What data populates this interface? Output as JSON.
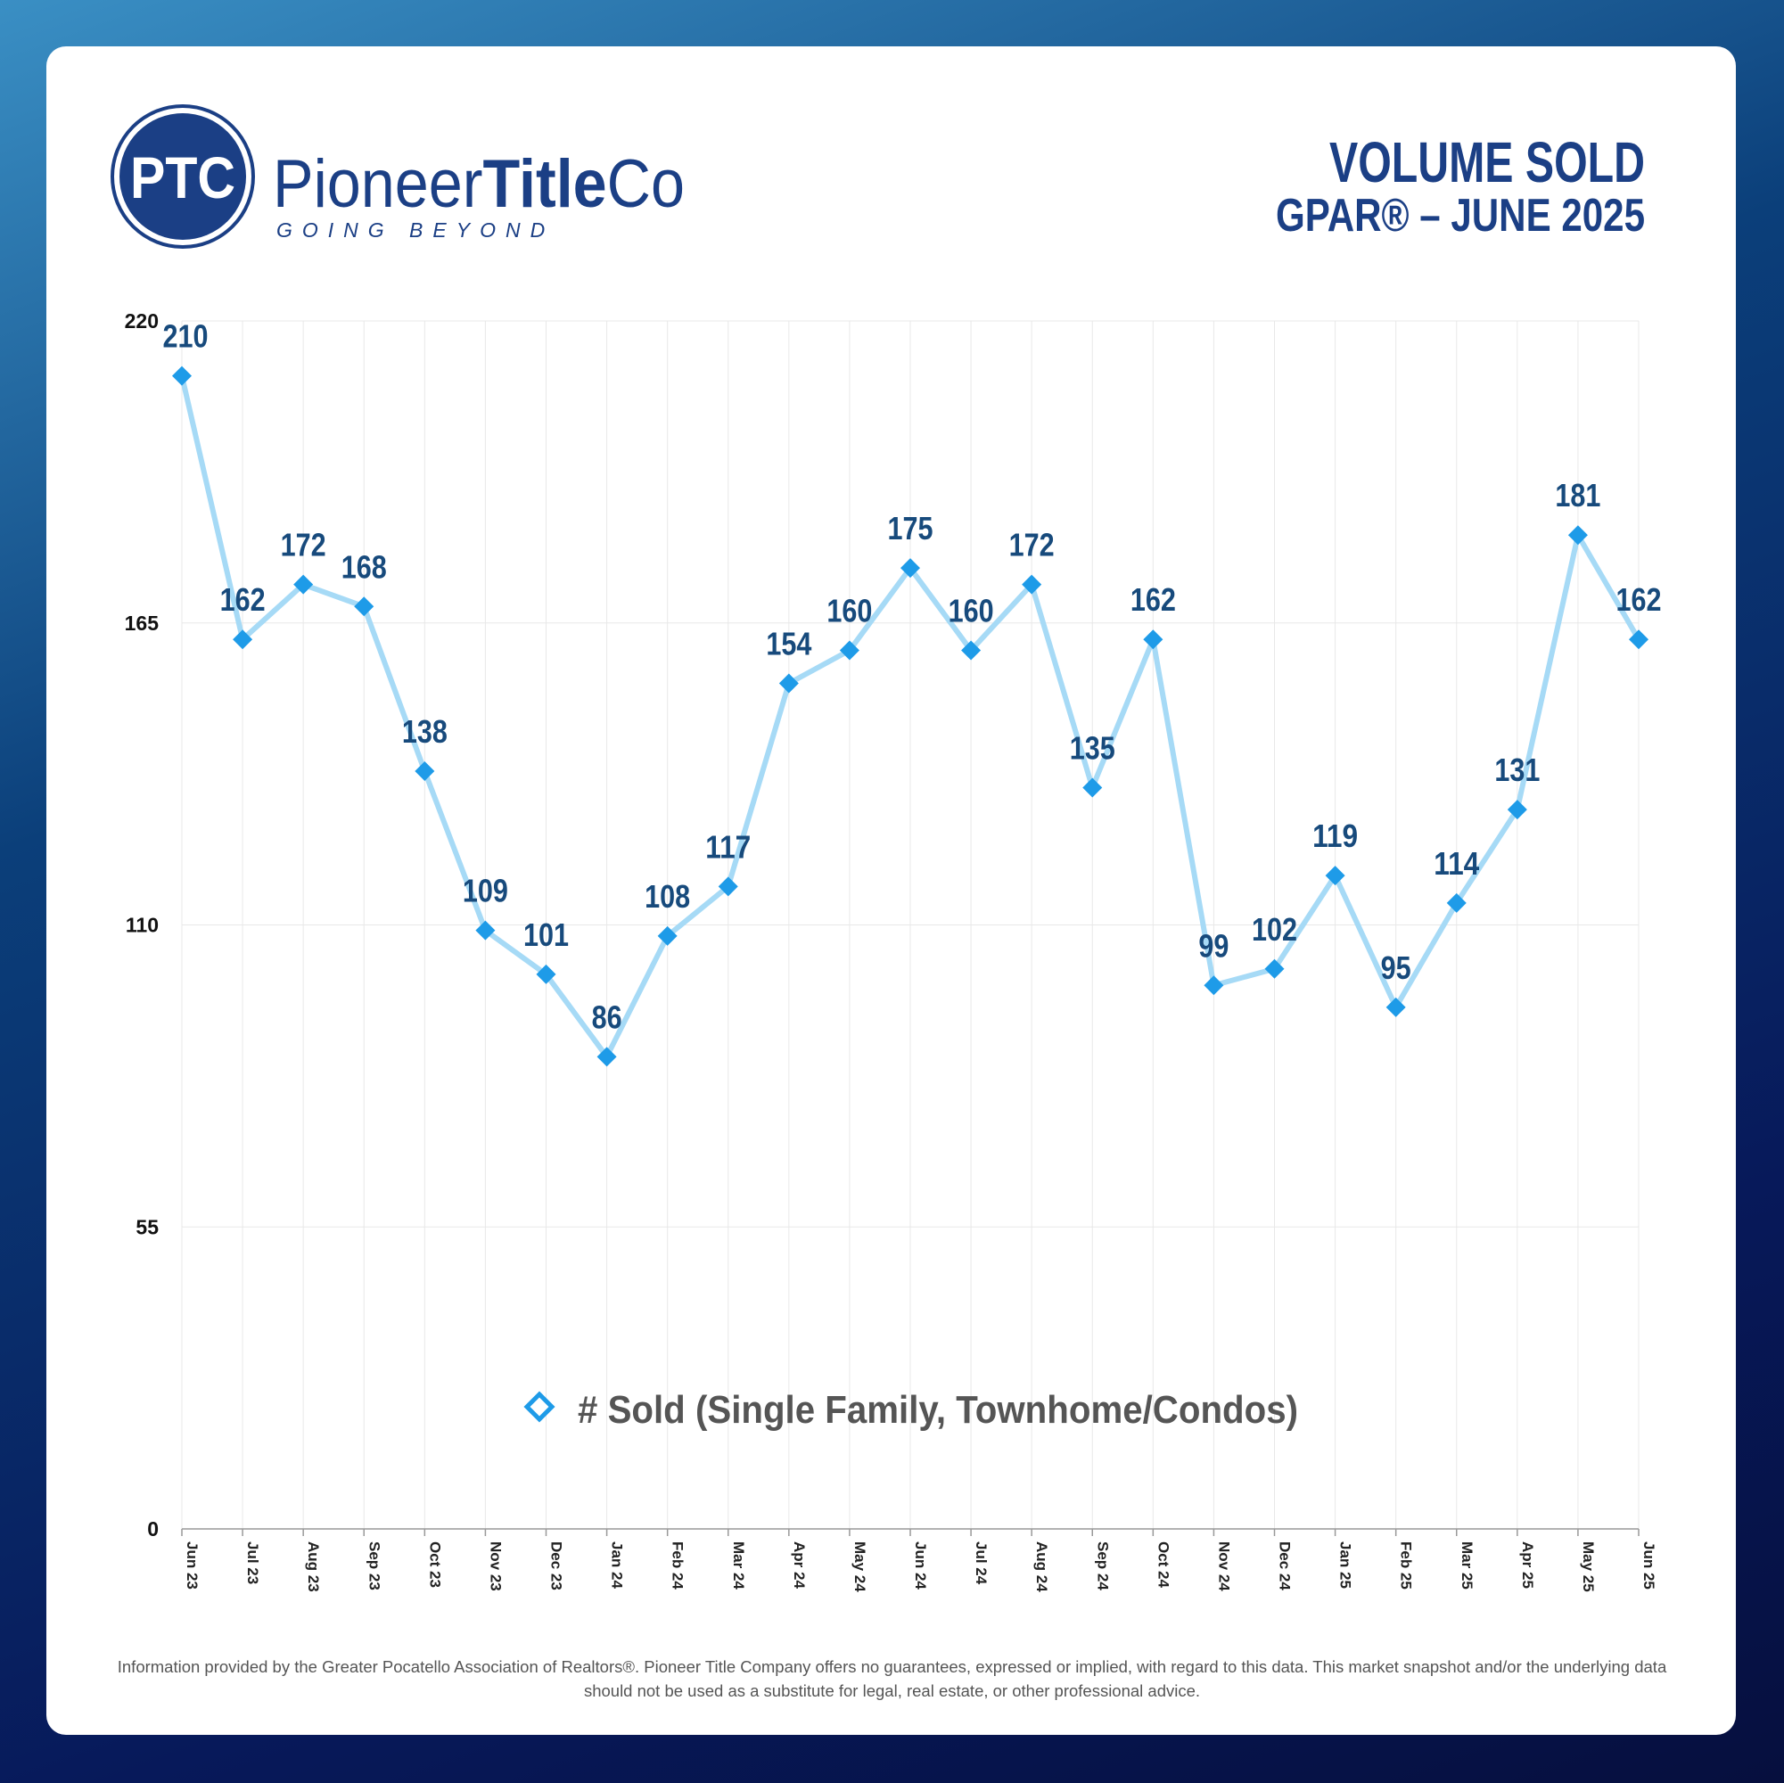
{
  "header": {
    "logo_initials": "PTC",
    "brand_first": "Pioneer",
    "brand_bold": "Title",
    "brand_last": "Co",
    "tagline": "GOING BEYOND"
  },
  "chart_data": {
    "type": "line",
    "title": "VOLUME SOLD",
    "subtitle": "GPAR® – JUNE 2025",
    "categories": [
      "Jun 23",
      "Jul 23",
      "Aug 23",
      "Sep 23",
      "Oct 23",
      "Nov 23",
      "Dec 23",
      "Jan 24",
      "Feb 24",
      "Mar 24",
      "Apr 24",
      "May 24",
      "Jun 24",
      "Jul 24",
      "Aug 24",
      "Sep 24",
      "Oct 24",
      "Nov 24",
      "Dec 24",
      "Jan 25",
      "Feb 25",
      "Mar 25",
      "Apr 25",
      "May 25",
      "Jun 25"
    ],
    "series": [
      {
        "name": "# Sold (Single Family, Townhome/Condos)",
        "color": "#1e9be8",
        "line_color": "#a6daf6",
        "values": [
          210,
          162,
          172,
          168,
          138,
          109,
          101,
          86,
          108,
          117,
          154,
          160,
          175,
          160,
          172,
          135,
          162,
          99,
          102,
          119,
          95,
          114,
          131,
          181,
          162
        ]
      }
    ],
    "ylim": [
      0,
      220
    ],
    "yticks": [
      0,
      55,
      110,
      165,
      220
    ],
    "grid": true,
    "legend": "bottom"
  },
  "footer": {
    "disclaimer": "Information provided by the Greater Pocatello Association of Realtors®. Pioneer Title Company offers no guarantees, expressed or implied, with regard to this data. This market snapshot and/or the underlying data should not be used as a substitute for legal, real estate, or other professional advice."
  }
}
